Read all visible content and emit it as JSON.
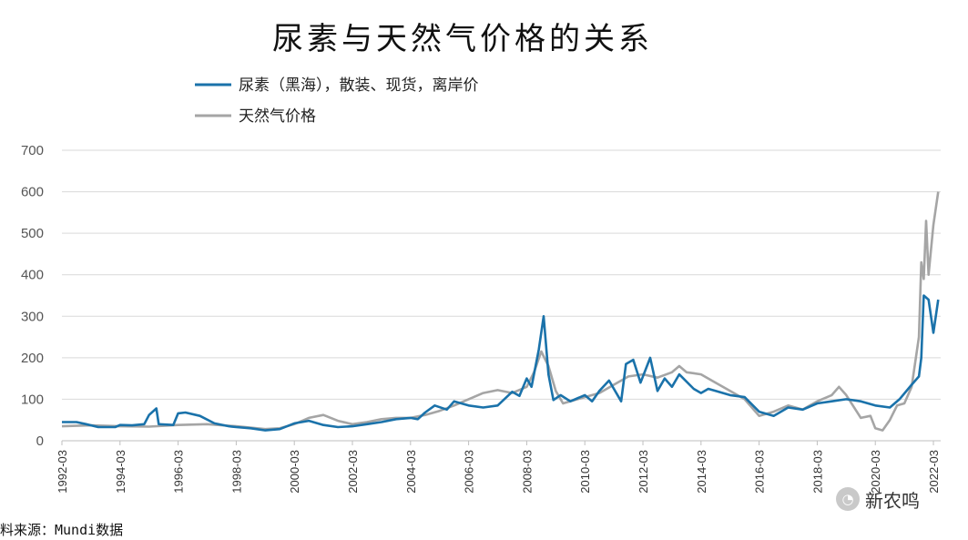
{
  "chart_data": {
    "type": "line",
    "title": "尿素与天然气价格的关系",
    "legend_position": "top-left",
    "grid": true,
    "ylim": [
      0,
      700
    ],
    "yticks": [
      0,
      100,
      200,
      300,
      400,
      500,
      600,
      700
    ],
    "xlim": [
      "1992-03",
      "2022-06"
    ],
    "xticks": [
      "1992-03",
      "1994-03",
      "1996-03",
      "1998-03",
      "2000-03",
      "2002-03",
      "2004-03",
      "2006-03",
      "2008-03",
      "2010-03",
      "2012-03",
      "2014-03",
      "2016-03",
      "2018-03",
      "2020-03",
      "2022-03"
    ],
    "series": [
      {
        "name": "尿素（黑海），散装、现货，离岸价",
        "color": "#1a72aa",
        "points": [
          [
            "1992-03",
            45
          ],
          [
            "1992-09",
            45
          ],
          [
            "1993-01",
            40
          ],
          [
            "1993-06",
            33
          ],
          [
            "1994-01",
            33
          ],
          [
            "1994-03",
            38
          ],
          [
            "1994-08",
            37
          ],
          [
            "1995-01",
            40
          ],
          [
            "1995-03",
            62
          ],
          [
            "1995-06",
            78
          ],
          [
            "1995-07",
            40
          ],
          [
            "1996-01",
            38
          ],
          [
            "1996-03",
            66
          ],
          [
            "1996-06",
            68
          ],
          [
            "1996-12",
            60
          ],
          [
            "1997-06",
            42
          ],
          [
            "1997-12",
            35
          ],
          [
            "1998-03",
            33
          ],
          [
            "1998-09",
            30
          ],
          [
            "1999-03",
            25
          ],
          [
            "1999-09",
            28
          ],
          [
            "2000-03",
            42
          ],
          [
            "2000-09",
            48
          ],
          [
            "2001-03",
            38
          ],
          [
            "2001-09",
            33
          ],
          [
            "2002-03",
            35
          ],
          [
            "2002-09",
            40
          ],
          [
            "2003-03",
            45
          ],
          [
            "2003-09",
            52
          ],
          [
            "2004-03",
            55
          ],
          [
            "2004-06",
            52
          ],
          [
            "2004-09",
            68
          ],
          [
            "2005-01",
            85
          ],
          [
            "2005-06",
            75
          ],
          [
            "2005-09",
            95
          ],
          [
            "2006-03",
            85
          ],
          [
            "2006-09",
            80
          ],
          [
            "2007-03",
            85
          ],
          [
            "2007-09",
            118
          ],
          [
            "2007-12",
            108
          ],
          [
            "2008-03",
            150
          ],
          [
            "2008-05",
            130
          ],
          [
            "2008-08",
            220
          ],
          [
            "2008-10",
            300
          ],
          [
            "2008-12",
            160
          ],
          [
            "2009-02",
            98
          ],
          [
            "2009-05",
            110
          ],
          [
            "2009-09",
            95
          ],
          [
            "2010-03",
            110
          ],
          [
            "2010-06",
            95
          ],
          [
            "2010-09",
            120
          ],
          [
            "2011-01",
            145
          ],
          [
            "2011-06",
            95
          ],
          [
            "2011-08",
            185
          ],
          [
            "2011-11",
            195
          ],
          [
            "2012-02",
            140
          ],
          [
            "2012-06",
            200
          ],
          [
            "2012-09",
            120
          ],
          [
            "2012-12",
            150
          ],
          [
            "2013-03",
            130
          ],
          [
            "2013-06",
            160
          ],
          [
            "2013-12",
            125
          ],
          [
            "2014-03",
            115
          ],
          [
            "2014-06",
            125
          ],
          [
            "2014-09",
            120
          ],
          [
            "2015-03",
            110
          ],
          [
            "2015-09",
            105
          ],
          [
            "2016-03",
            70
          ],
          [
            "2016-09",
            60
          ],
          [
            "2017-03",
            80
          ],
          [
            "2017-09",
            75
          ],
          [
            "2018-03",
            90
          ],
          [
            "2018-09",
            95
          ],
          [
            "2019-03",
            100
          ],
          [
            "2019-09",
            95
          ],
          [
            "2020-03",
            85
          ],
          [
            "2020-09",
            80
          ],
          [
            "2021-01",
            100
          ],
          [
            "2021-06",
            135
          ],
          [
            "2021-09",
            155
          ],
          [
            "2021-10",
            200
          ],
          [
            "2021-11",
            350
          ],
          [
            "2022-01",
            340
          ],
          [
            "2022-03",
            260
          ],
          [
            "2022-05",
            340
          ]
        ]
      },
      {
        "name": "天然气价格",
        "color": "#a5a5a5",
        "points": [
          [
            "1992-03",
            35
          ],
          [
            "1993-03",
            37
          ],
          [
            "1994-03",
            35
          ],
          [
            "1995-03",
            34
          ],
          [
            "1996-03",
            38
          ],
          [
            "1997-03",
            40
          ],
          [
            "1998-03",
            35
          ],
          [
            "1999-03",
            28
          ],
          [
            "1999-09",
            30
          ],
          [
            "2000-03",
            40
          ],
          [
            "2000-09",
            55
          ],
          [
            "2001-03",
            62
          ],
          [
            "2001-09",
            48
          ],
          [
            "2002-03",
            40
          ],
          [
            "2002-09",
            45
          ],
          [
            "2003-03",
            52
          ],
          [
            "2003-09",
            55
          ],
          [
            "2004-03",
            55
          ],
          [
            "2004-09",
            62
          ],
          [
            "2005-03",
            72
          ],
          [
            "2005-09",
            85
          ],
          [
            "2006-03",
            100
          ],
          [
            "2006-09",
            115
          ],
          [
            "2007-03",
            122
          ],
          [
            "2007-09",
            115
          ],
          [
            "2008-03",
            130
          ],
          [
            "2008-06",
            165
          ],
          [
            "2008-09",
            215
          ],
          [
            "2008-12",
            180
          ],
          [
            "2009-03",
            120
          ],
          [
            "2009-06",
            90
          ],
          [
            "2009-12",
            100
          ],
          [
            "2010-03",
            105
          ],
          [
            "2010-09",
            115
          ],
          [
            "2011-03",
            135
          ],
          [
            "2011-09",
            155
          ],
          [
            "2012-03",
            160
          ],
          [
            "2012-09",
            152
          ],
          [
            "2013-03",
            165
          ],
          [
            "2013-06",
            180
          ],
          [
            "2013-09",
            165
          ],
          [
            "2014-03",
            160
          ],
          [
            "2014-09",
            140
          ],
          [
            "2015-03",
            120
          ],
          [
            "2015-09",
            100
          ],
          [
            "2016-03",
            60
          ],
          [
            "2016-09",
            70
          ],
          [
            "2017-03",
            85
          ],
          [
            "2017-09",
            75
          ],
          [
            "2018-03",
            95
          ],
          [
            "2018-09",
            110
          ],
          [
            "2018-12",
            130
          ],
          [
            "2019-03",
            110
          ],
          [
            "2019-09",
            55
          ],
          [
            "2020-01",
            60
          ],
          [
            "2020-03",
            30
          ],
          [
            "2020-06",
            25
          ],
          [
            "2020-09",
            50
          ],
          [
            "2020-12",
            85
          ],
          [
            "2021-03",
            90
          ],
          [
            "2021-06",
            130
          ],
          [
            "2021-09",
            250
          ],
          [
            "2021-10",
            430
          ],
          [
            "2021-11",
            390
          ],
          [
            "2021-12",
            530
          ],
          [
            "2022-01",
            400
          ],
          [
            "2022-03",
            520
          ],
          [
            "2022-05",
            600
          ]
        ]
      }
    ]
  },
  "source_note": "料来源：Mundi数据",
  "watermark": {
    "icon": "wechat-icon",
    "text": "新农鸣"
  }
}
